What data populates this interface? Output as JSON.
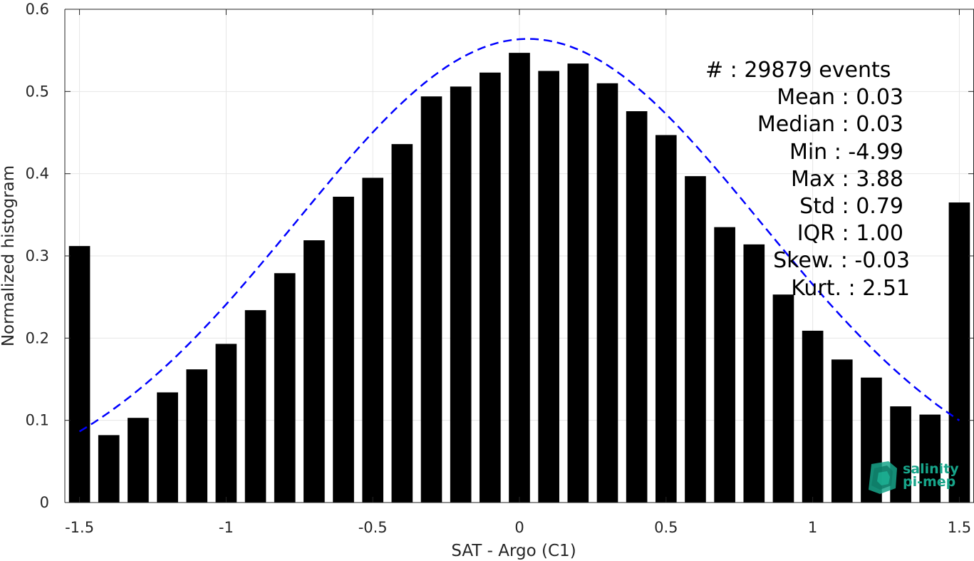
{
  "chart_data": {
    "type": "bar",
    "xlabel": "SAT - Argo (C1)",
    "ylabel": "Normalized histogram",
    "xlim": [
      -1.55,
      1.55
    ],
    "ylim": [
      0,
      0.6
    ],
    "xticks": [
      -1.5,
      -1,
      -0.5,
      0,
      0.5,
      1,
      1.5
    ],
    "xtick_labels": [
      "-1.5",
      "-1",
      "-0.5",
      "0",
      "0.5",
      "1",
      "1.5"
    ],
    "yticks": [
      0,
      0.1,
      0.2,
      0.3,
      0.4,
      0.5,
      0.6
    ],
    "ytick_labels": [
      "0",
      "0.1",
      "0.2",
      "0.3",
      "0.4",
      "0.5",
      "0.6"
    ],
    "grid": true,
    "bar_color": "#000000",
    "x": [
      -1.5,
      -1.4,
      -1.3,
      -1.2,
      -1.1,
      -1.0,
      -0.9,
      -0.8,
      -0.7,
      -0.6,
      -0.5,
      -0.4,
      -0.3,
      -0.2,
      -0.1,
      0.0,
      0.1,
      0.2,
      0.3,
      0.4,
      0.5,
      0.6,
      0.7,
      0.8,
      0.9,
      1.0,
      1.1,
      1.2,
      1.3,
      1.4,
      1.5
    ],
    "values": [
      0.312,
      0.082,
      0.103,
      0.134,
      0.162,
      0.193,
      0.234,
      0.279,
      0.319,
      0.372,
      0.395,
      0.436,
      0.494,
      0.506,
      0.523,
      0.547,
      0.525,
      0.534,
      0.51,
      0.476,
      0.447,
      0.397,
      0.335,
      0.314,
      0.253,
      0.209,
      0.174,
      0.152,
      0.117,
      0.107,
      0.365
    ],
    "fit_curve": {
      "style": "dashed",
      "color": "#0000ff",
      "mean": 0.03,
      "std": 0.79,
      "peak": 0.564,
      "x_range": [
        -1.5,
        1.5
      ]
    }
  },
  "stats": {
    "count": "#  : 29879 events",
    "mean": "Mean : 0.03",
    "median": "Median : 0.03",
    "min": "Min : -4.99",
    "max": "Max : 3.88",
    "std": "Std : 0.79",
    "iqr": "IQR : 1.00",
    "skew": "Skew. : -0.03",
    "kurt": "Kurt. : 2.51"
  },
  "logo": {
    "line1": "salinity",
    "line2": "pi-mep",
    "color": "#17a58a"
  }
}
